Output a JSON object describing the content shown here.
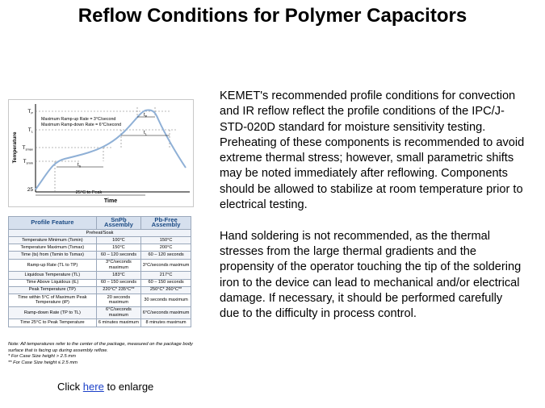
{
  "header": {
    "title": "Reflow Conditions for Polymer Capacitors"
  },
  "diagram": {
    "y_labels": [
      {
        "main": "T",
        "sub": "P"
      },
      {
        "main": "T",
        "sub": "L"
      },
      {
        "main": "T",
        "sub": "smax"
      },
      {
        "main": "T",
        "sub": "smin"
      },
      {
        "main": "25",
        "sub": ""
      }
    ],
    "ramp_up_note": "Maximum Ramp-up Rate = 3°C/second",
    "ramp_down_note": "Maximum Ramp-down Rate = 6°C/second",
    "t_labels": [
      {
        "main": "t",
        "sub": "P"
      },
      {
        "main": "t",
        "sub": "L"
      },
      {
        "main": "t",
        "sub": "S"
      }
    ],
    "y_axis_label": "Temperature",
    "x_axis_label": "Time",
    "span_label": "25°C to Peak"
  },
  "table": {
    "header": [
      "Profile Feature",
      "SnPb Assembly",
      "Pb-Free Assembly"
    ],
    "section": "Preheat/Soak",
    "rows": [
      [
        "Temperature Minimum (Tsmin)",
        "100°C",
        "150°C"
      ],
      [
        "Temperature Maximum (Tsmax)",
        "150°C",
        "200°C"
      ],
      [
        "Time (ts) from (Tsmin to Tsmax)",
        "60 – 120 seconds",
        "60 – 120 seconds"
      ],
      [
        "Ramp-up Rate (TL to TP)",
        "3°C/seconds maximum",
        "3°C/seconds maximum"
      ],
      [
        "Liquidous Temperature (TL)",
        "183°C",
        "217°C"
      ],
      [
        "Time Above Liquidous (tL)",
        "60 – 150 seconds",
        "60 – 150 seconds"
      ],
      [
        "Peak Temperature (TP)",
        "220°C* 235°C**",
        "250°C* 260°C**"
      ],
      [
        "Time within 5°C of Maximum Peak Temperature (tP)",
        "20 seconds maximum",
        "30 seconds maximum"
      ],
      [
        "Ramp-down Rate (TP to TL)",
        "6°C/seconds maximum",
        "6°C/seconds maximum"
      ],
      [
        "Time 25°C to Peak Temperature",
        "6 minutes maximum",
        "8 minutes maximum"
      ]
    ]
  },
  "notes": [
    "Note: All temperatures refer to the center of the package, measured on the package body surface that is facing up during assembly reflow.",
    "* For Case Size height > 2.5 mm",
    "** For Case Size height ≤ 2.5 mm"
  ],
  "click": {
    "before": "Click",
    "link": "here",
    "after": "to enlarge"
  },
  "body": [
    "KEMET's recommended profile conditions for convection and IR reflow reflect the profile conditions of the IPC/J-STD-020D standard for moisture sensitivity testing. Preheating of these components is recommended to avoid extreme thermal stress; however, small parametric shifts may be noted immediately after reflowing. Components should be allowed to stabilize at room temperature prior to electrical testing.",
    "Hand soldering is not recommended, as the thermal stresses from the large thermal gradients and the propensity of the operator touching the tip of the soldering iron to the device can lead to mechanical and/or electrical damage. If necessary, it should be performed carefully due to the difficulty in process control."
  ]
}
